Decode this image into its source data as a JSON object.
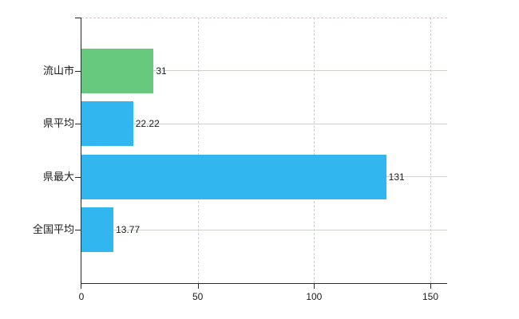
{
  "chart_data": {
    "type": "bar",
    "orientation": "horizontal",
    "title": "",
    "xlabel": "",
    "ylabel": "",
    "categories": [
      "流山市",
      "県平均",
      "県最大",
      "全国平均"
    ],
    "values": [
      31,
      22.22,
      131,
      13.77
    ],
    "value_labels": [
      "31",
      "22.22",
      "131",
      "13.77"
    ],
    "bar_colors": [
      "#66c97d",
      "#31b6ef",
      "#31b6ef",
      "#31b6ef"
    ],
    "x_ticks": [
      0,
      50,
      100,
      150
    ],
    "x_tick_labels": [
      "0",
      "50",
      "100",
      "150"
    ],
    "xlim": [
      0,
      157.2
    ],
    "grid": true,
    "legend": false,
    "colors": {
      "green_bar": "#66c97d",
      "blue_bar": "#31b6ef",
      "axis": "#2b2b2b",
      "text": "#1b1b1b",
      "h_gridline": "#ccd4cc",
      "v_gridline": "#d3cbd3",
      "background": "#ffffff"
    }
  }
}
